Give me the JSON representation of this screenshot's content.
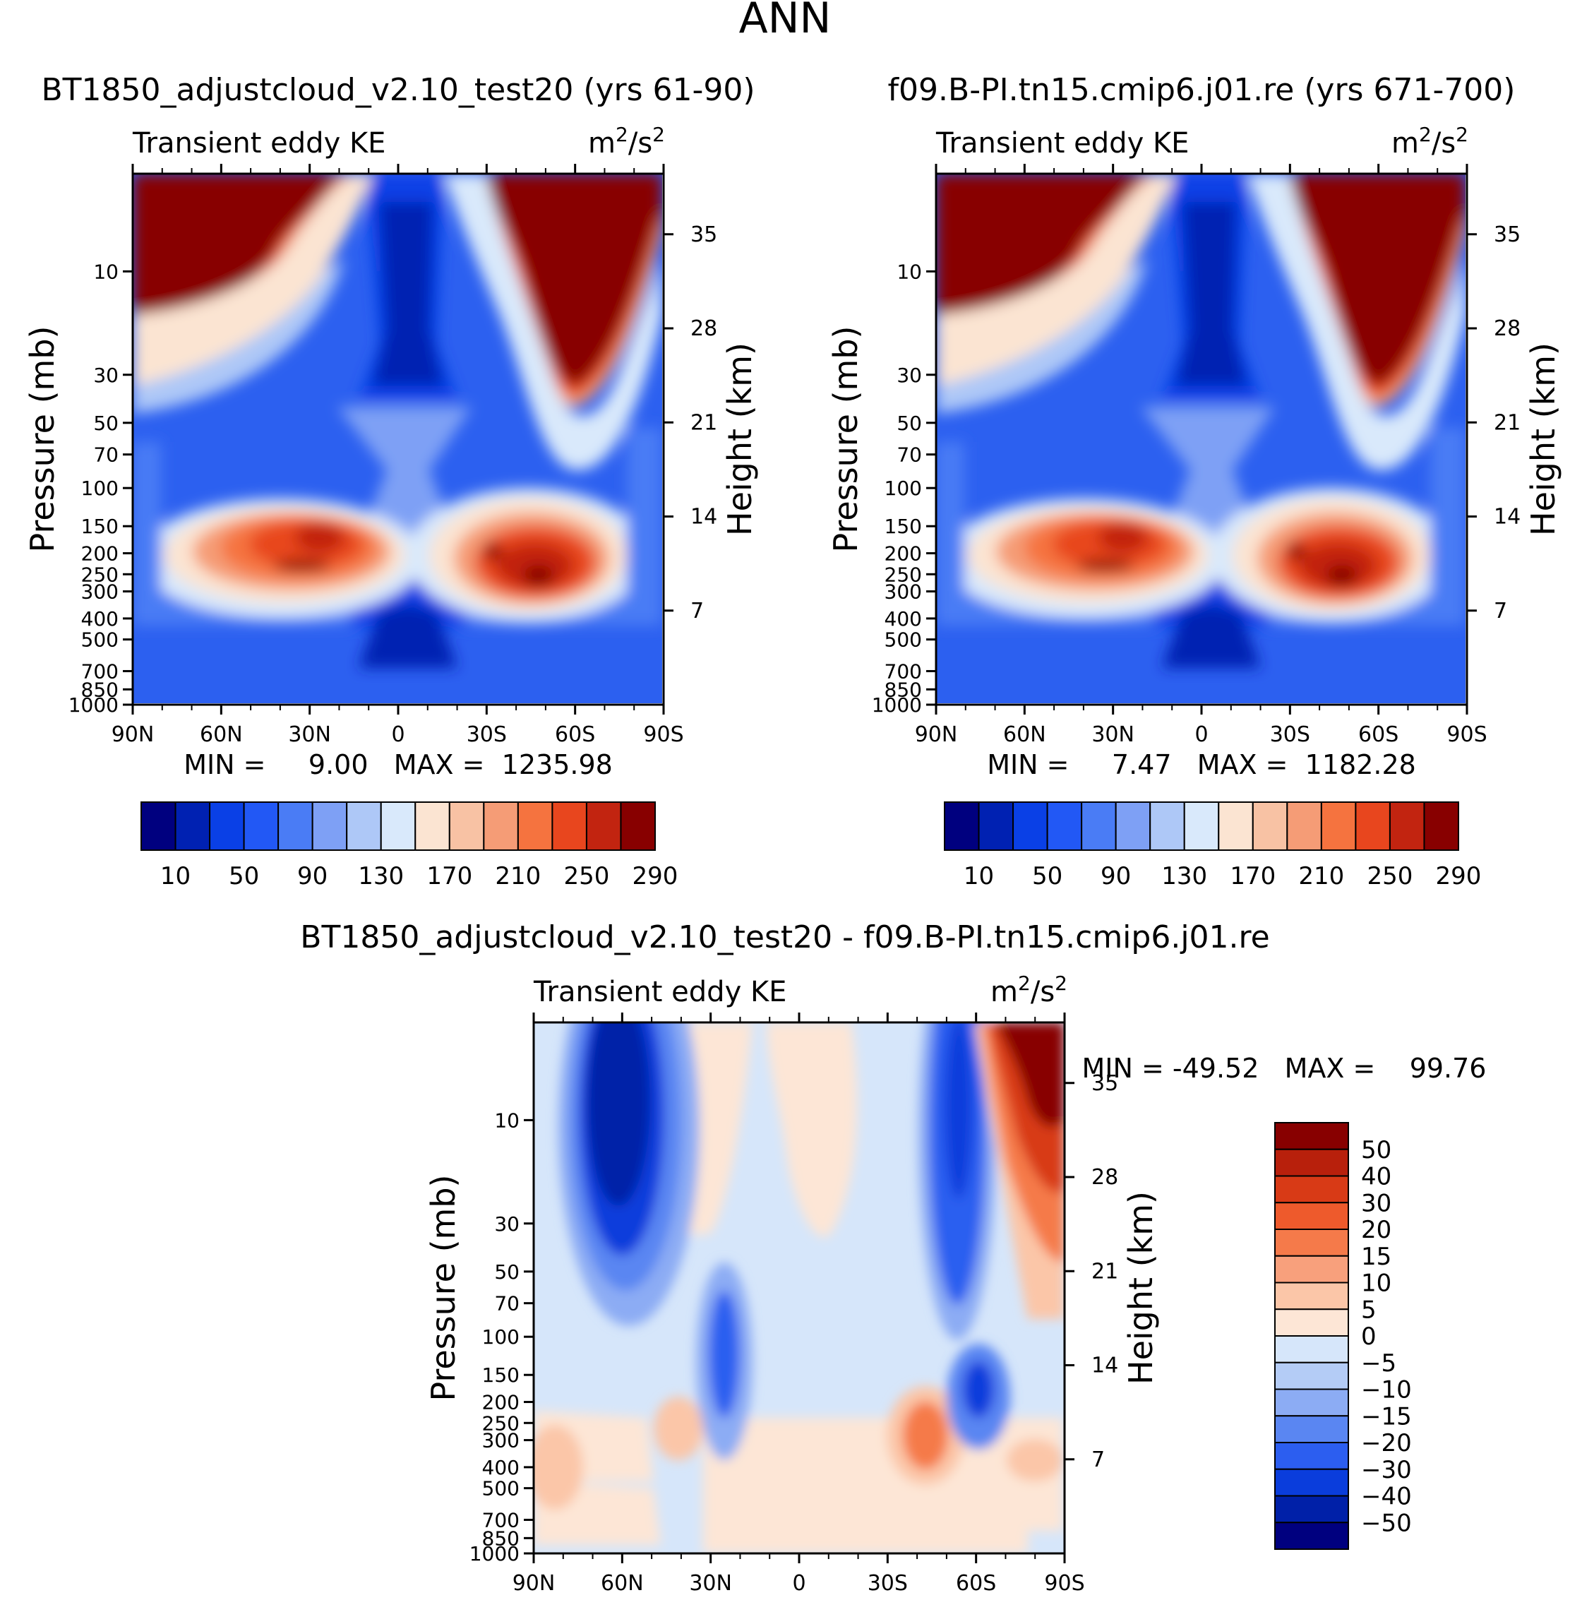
{
  "figure_title": "ANN",
  "chart_data": [
    {
      "type": "heatmap",
      "title": "BT1850_adjustcloud_v2.10_test20 (yrs 61-90)",
      "subtitle_left": "Transient eddy KE",
      "units": "m²/s²",
      "units_base": "m",
      "units_exp1": "2",
      "units_mid": "/s",
      "units_exp2": "2",
      "xlabel": "",
      "ylabel": "Pressure (mb)",
      "y2label": "Height (km)",
      "x_ticks": [
        "90N",
        "60N",
        "30N",
        "0",
        "30S",
        "60S",
        "90S"
      ],
      "x_values": [
        90,
        60,
        30,
        0,
        -30,
        -60,
        -90
      ],
      "y_ticks": [
        "10",
        "30",
        "50",
        "70",
        "100",
        "150",
        "200",
        "250",
        "300",
        "400",
        "500",
        "700",
        "850",
        "1000"
      ],
      "y_values_mb": [
        10,
        30,
        50,
        70,
        100,
        150,
        200,
        250,
        300,
        400,
        500,
        700,
        850,
        1000
      ],
      "y2_ticks": [
        "35",
        "28",
        "21",
        "14",
        "7"
      ],
      "y2_values_km": [
        35,
        28,
        21,
        14,
        7
      ],
      "stats_text": "MIN =     9.00   MAX =  1235.98",
      "min": 9.0,
      "max": 1235.98,
      "colorbar_levels": [
        "10",
        "50",
        "90",
        "130",
        "170",
        "210",
        "250",
        "290"
      ],
      "colorbar_level_values": [
        10,
        30,
        50,
        70,
        90,
        110,
        130,
        150,
        170,
        190,
        210,
        230,
        250,
        270,
        290
      ],
      "colorbar_colors": [
        "#00007f",
        "#0021b2",
        "#0a40e6",
        "#2258f5",
        "#4a7cf5",
        "#7ea0f5",
        "#aec8f7",
        "#d9e9fb",
        "#fbe4d2",
        "#f8c2a4",
        "#f59c76",
        "#f5733f",
        "#e8461e",
        "#c22410",
        "#880000"
      ]
    },
    {
      "type": "heatmap",
      "title": "f09.B-PI.tn15.cmip6.j01.re (yrs 671-700)",
      "subtitle_left": "Transient eddy KE",
      "units": "m²/s²",
      "units_base": "m",
      "units_exp1": "2",
      "units_mid": "/s",
      "units_exp2": "2",
      "xlabel": "",
      "ylabel": "Pressure (mb)",
      "y2label": "Height (km)",
      "x_ticks": [
        "90N",
        "60N",
        "30N",
        "0",
        "30S",
        "60S",
        "90S"
      ],
      "x_values": [
        90,
        60,
        30,
        0,
        -30,
        -60,
        -90
      ],
      "y_ticks": [
        "10",
        "30",
        "50",
        "70",
        "100",
        "150",
        "200",
        "250",
        "300",
        "400",
        "500",
        "700",
        "850",
        "1000"
      ],
      "y_values_mb": [
        10,
        30,
        50,
        70,
        100,
        150,
        200,
        250,
        300,
        400,
        500,
        700,
        850,
        1000
      ],
      "y2_ticks": [
        "35",
        "28",
        "21",
        "14",
        "7"
      ],
      "y2_values_km": [
        35,
        28,
        21,
        14,
        7
      ],
      "stats_text": "MIN =     7.47   MAX =  1182.28",
      "min": 7.47,
      "max": 1182.28,
      "colorbar_levels": [
        "10",
        "50",
        "90",
        "130",
        "170",
        "210",
        "250",
        "290"
      ],
      "colorbar_level_values": [
        10,
        30,
        50,
        70,
        90,
        110,
        130,
        150,
        170,
        190,
        210,
        230,
        250,
        270,
        290
      ],
      "colorbar_colors": [
        "#00007f",
        "#0021b2",
        "#0a40e6",
        "#2258f5",
        "#4a7cf5",
        "#7ea0f5",
        "#aec8f7",
        "#d9e9fb",
        "#fbe4d2",
        "#f8c2a4",
        "#f59c76",
        "#f5733f",
        "#e8461e",
        "#c22410",
        "#880000"
      ]
    },
    {
      "type": "heatmap",
      "title": "BT1850_adjustcloud_v2.10_test20 - f09.B-PI.tn15.cmip6.j01.re",
      "subtitle_left": "Transient eddy KE",
      "units": "m²/s²",
      "units_base": "m",
      "units_exp1": "2",
      "units_mid": "/s",
      "units_exp2": "2",
      "xlabel": "",
      "ylabel": "Pressure (mb)",
      "y2label": "Height (km)",
      "x_ticks": [
        "90N",
        "60N",
        "30N",
        "0",
        "30S",
        "60S",
        "90S"
      ],
      "x_values": [
        90,
        60,
        30,
        0,
        -30,
        -60,
        -90
      ],
      "y_ticks": [
        "10",
        "30",
        "50",
        "70",
        "100",
        "150",
        "200",
        "250",
        "300",
        "400",
        "500",
        "700",
        "850",
        "1000"
      ],
      "y_values_mb": [
        10,
        30,
        50,
        70,
        100,
        150,
        200,
        250,
        300,
        400,
        500,
        700,
        850,
        1000
      ],
      "y2_ticks": [
        "35",
        "28",
        "21",
        "14",
        "7"
      ],
      "y2_values_km": [
        35,
        28,
        21,
        14,
        7
      ],
      "stats_text": "MIN = -49.52   MAX =    99.76",
      "min": -49.52,
      "max": 99.76,
      "colorbar_levels": [
        "50",
        "40",
        "30",
        "20",
        "15",
        "10",
        "5",
        "0",
        "-5",
        "-10",
        "-15",
        "-20",
        "-30",
        "-40",
        "-50"
      ],
      "colorbar_level_values": [
        50,
        40,
        30,
        20,
        15,
        10,
        5,
        0,
        -5,
        -10,
        -15,
        -20,
        -30,
        -40,
        -50
      ],
      "colorbar_colors": [
        "#880000",
        "#b8200c",
        "#d83a16",
        "#ee5a2c",
        "#f57a4a",
        "#f8a07c",
        "#fbc6a8",
        "#fde6d6",
        "#d6e6fa",
        "#b4ccf6",
        "#8cacf4",
        "#5a86f2",
        "#2c5ef0",
        "#0a3ddc",
        "#0020a8",
        "#00007f"
      ]
    }
  ]
}
